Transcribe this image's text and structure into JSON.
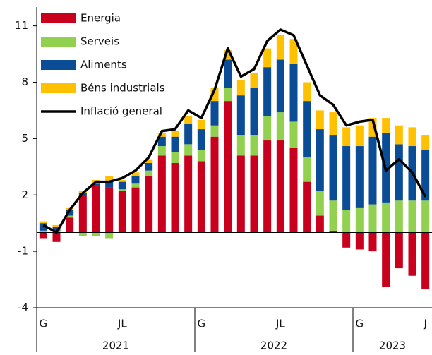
{
  "chart_data": {
    "type": "bar",
    "stacked": true,
    "categories": [
      "G",
      null,
      null,
      null,
      null,
      null,
      "JL",
      null,
      null,
      null,
      null,
      null,
      "G",
      null,
      null,
      null,
      null,
      null,
      "JL",
      null,
      null,
      null,
      null,
      null,
      "G",
      null,
      null,
      null,
      null,
      "J"
    ],
    "year_labels": [
      "2021",
      "2022",
      "2023"
    ],
    "series": [
      {
        "name": "Energia",
        "color": "#c8001e",
        "values": [
          -0.3,
          -0.5,
          0.8,
          2.0,
          2.5,
          2.4,
          2.2,
          2.4,
          3.0,
          4.1,
          3.7,
          4.1,
          3.8,
          5.1,
          7.0,
          4.1,
          4.1,
          4.9,
          4.9,
          4.5,
          2.7,
          0.9,
          0.1,
          -0.8,
          -0.9,
          -1.0,
          -2.9,
          -1.9,
          -2.3,
          -3.0
        ]
      },
      {
        "name": "Serveis",
        "color": "#92d050",
        "values": [
          0.1,
          0.1,
          0.1,
          -0.2,
          -0.2,
          -0.3,
          0.1,
          0.2,
          0.3,
          0.5,
          0.6,
          0.6,
          0.6,
          0.6,
          0.7,
          1.1,
          1.1,
          1.3,
          1.5,
          1.4,
          1.3,
          1.3,
          1.6,
          1.2,
          1.3,
          1.5,
          1.6,
          1.7,
          1.7,
          1.7
        ]
      },
      {
        "name": "Aliments",
        "color": "#0a4d96",
        "values": [
          0.4,
          0.2,
          0.3,
          0.1,
          0.1,
          0.3,
          0.4,
          0.4,
          0.4,
          0.5,
          0.8,
          1.1,
          1.1,
          1.3,
          1.5,
          2.1,
          2.5,
          2.6,
          2.8,
          3.1,
          3.0,
          3.3,
          3.5,
          3.4,
          3.3,
          3.6,
          3.7,
          3.0,
          2.9,
          2.7
        ]
      },
      {
        "name": "Béns industrials",
        "color": "#ffc000",
        "values": [
          0.1,
          0.1,
          0.1,
          0.1,
          0.2,
          0.3,
          0.1,
          0.2,
          0.2,
          0.2,
          0.3,
          0.4,
          0.5,
          0.7,
          0.5,
          0.8,
          0.8,
          1.0,
          1.3,
          1.3,
          1.0,
          1.0,
          1.2,
          1.0,
          1.1,
          1.0,
          0.8,
          1.0,
          1.0,
          0.8
        ]
      },
      {
        "name": "Inflació general",
        "color": "#000000",
        "type": "line",
        "values": [
          0.4,
          0.0,
          1.2,
          2.1,
          2.7,
          2.7,
          2.9,
          3.3,
          4.0,
          5.4,
          5.5,
          6.5,
          6.1,
          7.6,
          9.8,
          8.3,
          8.7,
          10.2,
          10.8,
          10.5,
          8.9,
          7.3,
          6.8,
          5.7,
          5.9,
          6.0,
          3.3,
          3.9,
          3.2,
          1.9
        ]
      }
    ],
    "ylim": [
      -4,
      12
    ],
    "yticks": [
      -4,
      -1,
      2,
      5,
      8,
      11
    ],
    "legend": "top-left"
  }
}
